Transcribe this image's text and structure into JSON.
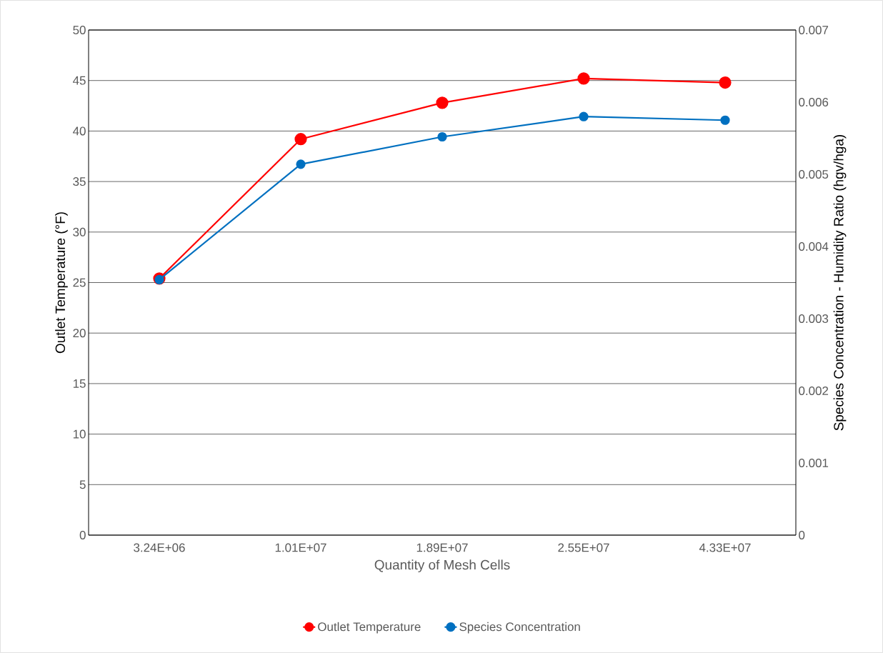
{
  "chart_data": {
    "type": "line",
    "xlabel": "Quantity of Mesh Cells",
    "ylabel": "Outlet Temperature (°F)",
    "y2label": "Species Concentration - Humidity Ratio (hgv/hga)",
    "categories": [
      "3.24E+06",
      "1.01E+07",
      "1.89E+07",
      "2.55E+07",
      "4.33E+07"
    ],
    "series": [
      {
        "name": "Outlet Temperature",
        "color": "#ff0000",
        "values": [
          25.4,
          39.2,
          42.8,
          45.2,
          44.8
        ]
      },
      {
        "name": "Species Concentration",
        "color": "#0070c0",
        "axis": "y2",
        "values": [
          0.00354,
          0.00514,
          0.00552,
          0.0058,
          0.00575
        ]
      }
    ],
    "ylim": [
      0,
      50
    ],
    "yticks": [
      0,
      5,
      10,
      15,
      20,
      25,
      30,
      35,
      40,
      45,
      50
    ],
    "y2lim": [
      0,
      0.007
    ],
    "y2ticks": [
      0,
      0.001,
      0.002,
      0.003,
      0.004,
      0.005,
      0.006,
      0.007
    ],
    "grid": "y",
    "legend": "bottom",
    "marker": "circle",
    "line_style": "solid"
  }
}
